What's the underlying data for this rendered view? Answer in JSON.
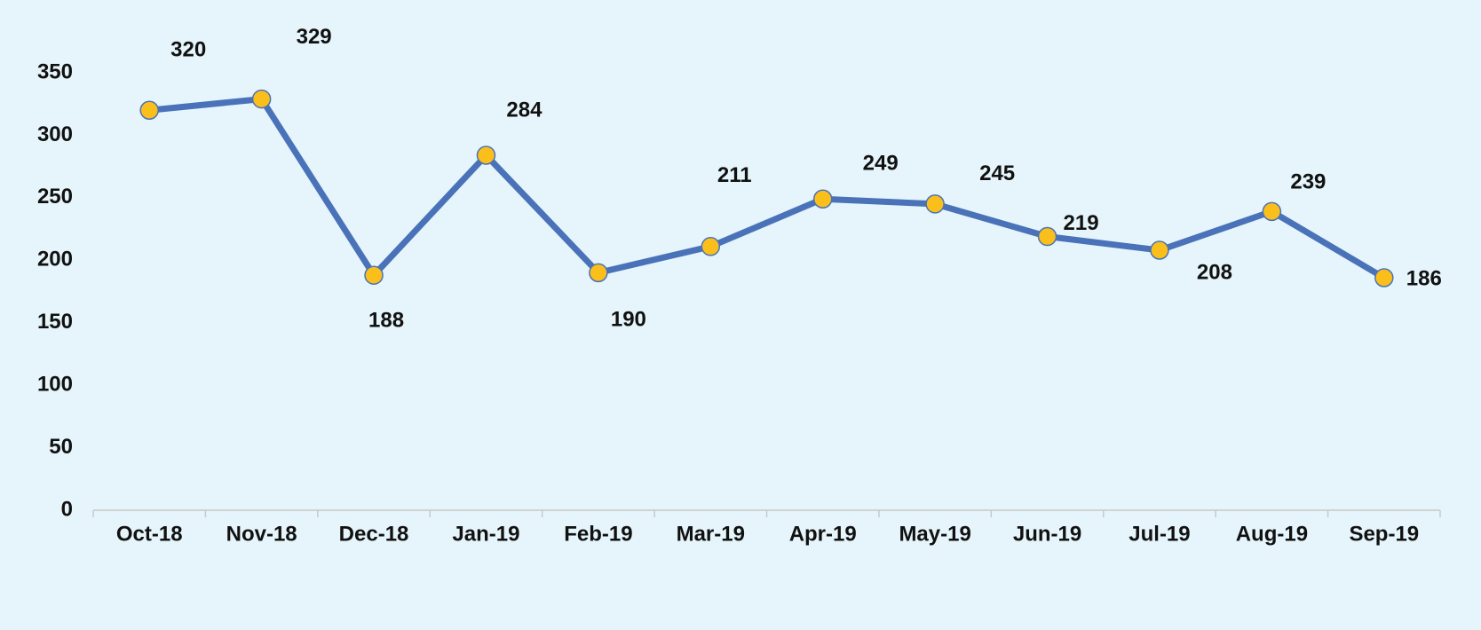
{
  "chart_data": {
    "type": "line",
    "categories": [
      "Oct-18",
      "Nov-18",
      "Dec-18",
      "Jan-19",
      "Feb-19",
      "Mar-19",
      "Apr-19",
      "May-19",
      "Jun-19",
      "Jul-19",
      "Aug-19",
      "Sep-19"
    ],
    "series": [
      {
        "color": "#4a72b8",
        "marker_color": "#fbbf1c",
        "values": [
          320,
          329,
          188,
          284,
          190,
          211,
          249,
          245,
          219,
          208,
          239,
          186
        ]
      }
    ],
    "ylim": [
      0,
      350
    ],
    "yticks": [
      0,
      50,
      100,
      150,
      200,
      250,
      300,
      350
    ],
    "grid": false
  }
}
